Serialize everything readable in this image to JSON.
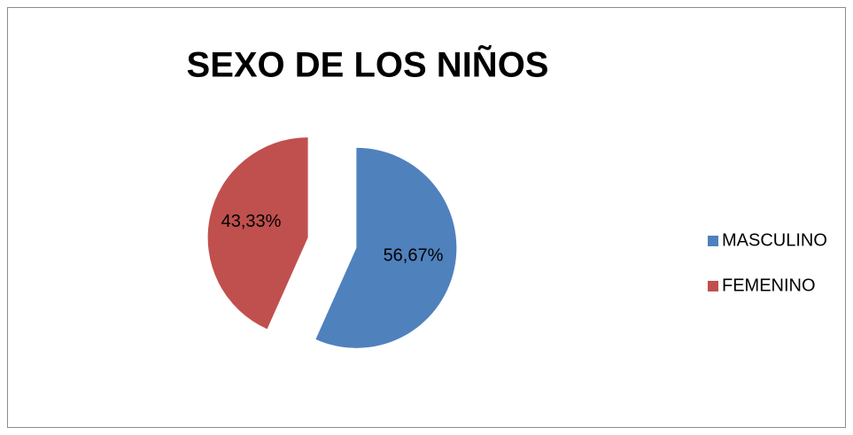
{
  "chart_data": {
    "type": "pie",
    "title": "SEXO DE LOS NIÑOS",
    "categories": [
      "MASCULINO",
      "FEMENINO"
    ],
    "values": [
      56.67,
      43.33
    ],
    "value_labels": [
      "56,67%",
      "43,33%"
    ],
    "colors": [
      "#4f81bd",
      "#c0504d"
    ],
    "legend": "right"
  }
}
